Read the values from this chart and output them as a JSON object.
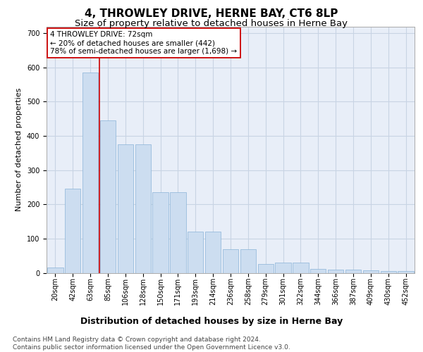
{
  "title": "4, THROWLEY DRIVE, HERNE BAY, CT6 8LP",
  "subtitle": "Size of property relative to detached houses in Herne Bay",
  "xlabel": "Distribution of detached houses by size in Herne Bay",
  "ylabel": "Number of detached properties",
  "categories": [
    "20sqm",
    "42sqm",
    "63sqm",
    "85sqm",
    "106sqm",
    "128sqm",
    "150sqm",
    "171sqm",
    "193sqm",
    "214sqm",
    "236sqm",
    "258sqm",
    "279sqm",
    "301sqm",
    "322sqm",
    "344sqm",
    "366sqm",
    "387sqm",
    "409sqm",
    "430sqm",
    "452sqm"
  ],
  "values": [
    15,
    245,
    585,
    445,
    375,
    375,
    235,
    235,
    120,
    120,
    68,
    68,
    25,
    30,
    30,
    12,
    10,
    10,
    8,
    5,
    5
  ],
  "bar_color": "#ccddf0",
  "bar_edge_color": "#8ab4d8",
  "vline_color": "#cc0000",
  "vline_x_index": 2.5,
  "annotation_text": "4 THROWLEY DRIVE: 72sqm\n← 20% of detached houses are smaller (442)\n78% of semi-detached houses are larger (1,698) →",
  "annotation_box_color": "#ffffff",
  "annotation_box_edge": "#cc0000",
  "grid_color": "#c8d4e4",
  "background_color": "#e8eef8",
  "ylim": [
    0,
    720
  ],
  "yticks": [
    0,
    100,
    200,
    300,
    400,
    500,
    600,
    700
  ],
  "footer": "Contains HM Land Registry data © Crown copyright and database right 2024.\nContains public sector information licensed under the Open Government Licence v3.0.",
  "title_fontsize": 11,
  "subtitle_fontsize": 9.5,
  "xlabel_fontsize": 9,
  "ylabel_fontsize": 8,
  "tick_fontsize": 7,
  "annotation_fontsize": 7.5,
  "footer_fontsize": 6.5
}
